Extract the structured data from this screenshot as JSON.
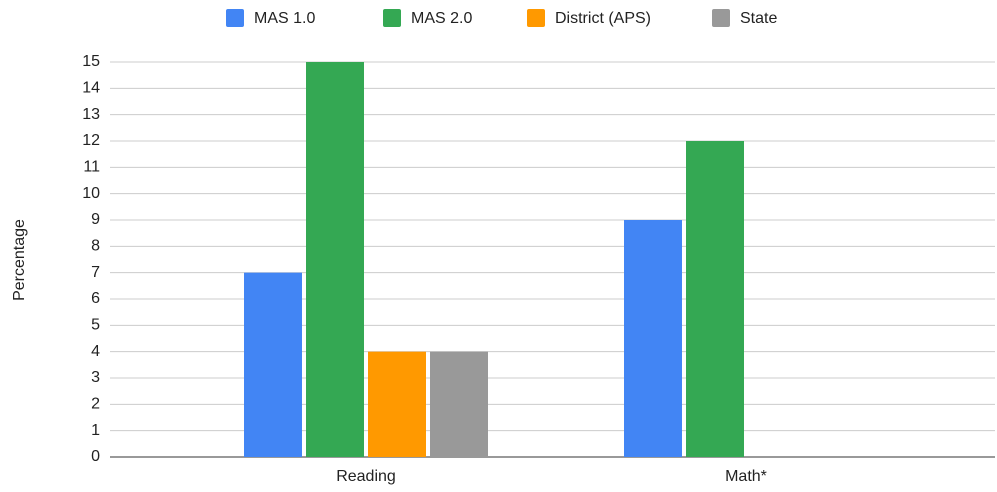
{
  "chart_data": {
    "type": "bar",
    "y_label": "Percentage",
    "categories": [
      "Reading",
      "Math*"
    ],
    "series": [
      {
        "name": "MAS 1.0",
        "color": "#4285f4",
        "values": [
          7,
          9
        ]
      },
      {
        "name": "MAS 2.0",
        "color": "#34a853",
        "values": [
          15,
          12
        ]
      },
      {
        "name": "District (APS)",
        "color": "#ff9900",
        "values": [
          4,
          null
        ]
      },
      {
        "name": "State",
        "color": "#999999",
        "values": [
          4,
          null
        ]
      }
    ],
    "ylim": [
      0,
      15
    ],
    "yticks": [
      0,
      1,
      2,
      3,
      4,
      5,
      6,
      7,
      8,
      9,
      10,
      11,
      12,
      13,
      14,
      15
    ],
    "grid": true,
    "legend": "top"
  }
}
